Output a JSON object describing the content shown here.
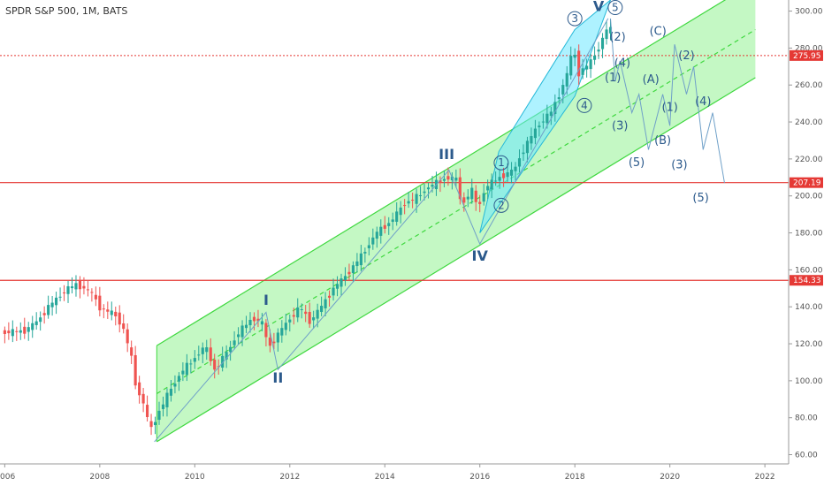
{
  "header": {
    "title": "SPDR S&P 500, 1M, BATS"
  },
  "chart_data": {
    "type": "candlestick",
    "title": "SPDR S&P 500, 1M, BATS",
    "x_ticks": [
      "006",
      "2008",
      "2010",
      "2012",
      "2014",
      "2016",
      "2018",
      "2020",
      "2022"
    ],
    "y_ticks": [
      60,
      80,
      100,
      120,
      140,
      160,
      180,
      200,
      220,
      240,
      260,
      280,
      300
    ],
    "xlim": [
      2005.9,
      2022.5
    ],
    "ylim": [
      55,
      306
    ],
    "horizontal_levels": [
      {
        "value": 275.95,
        "label": "275.95",
        "style": "dotted"
      },
      {
        "value": 207.19,
        "label": "207.19",
        "style": "solid"
      },
      {
        "value": 154.33,
        "label": "154.33",
        "style": "solid"
      }
    ],
    "price_path": [
      [
        2006.0,
        126
      ],
      [
        2006.5,
        127
      ],
      [
        2006.8,
        133
      ],
      [
        2007.0,
        140
      ],
      [
        2007.4,
        150
      ],
      [
        2007.6,
        152
      ],
      [
        2007.9,
        148
      ],
      [
        2008.1,
        139
      ],
      [
        2008.4,
        136
      ],
      [
        2008.6,
        127
      ],
      [
        2008.75,
        112
      ],
      [
        2008.85,
        96
      ],
      [
        2009.0,
        88
      ],
      [
        2009.15,
        73
      ],
      [
        2009.3,
        82
      ],
      [
        2009.5,
        92
      ],
      [
        2009.8,
        105
      ],
      [
        2010.0,
        110
      ],
      [
        2010.3,
        119
      ],
      [
        2010.5,
        106
      ],
      [
        2010.8,
        117
      ],
      [
        2011.0,
        126
      ],
      [
        2011.3,
        134
      ],
      [
        2011.5,
        131
      ],
      [
        2011.65,
        118
      ],
      [
        2011.8,
        124
      ],
      [
        2012.0,
        131
      ],
      [
        2012.3,
        140
      ],
      [
        2012.5,
        132
      ],
      [
        2012.8,
        142
      ],
      [
        2013.0,
        150
      ],
      [
        2013.3,
        158
      ],
      [
        2013.6,
        168
      ],
      [
        2013.9,
        180
      ],
      [
        2014.2,
        186
      ],
      [
        2014.5,
        196
      ],
      [
        2014.8,
        200
      ],
      [
        2015.0,
        205
      ],
      [
        2015.4,
        210
      ],
      [
        2015.6,
        209
      ],
      [
        2015.7,
        194
      ],
      [
        2015.9,
        204
      ],
      [
        2016.05,
        193
      ],
      [
        2016.2,
        205
      ],
      [
        2016.5,
        210
      ],
      [
        2016.8,
        214
      ],
      [
        2017.0,
        225
      ],
      [
        2017.3,
        238
      ],
      [
        2017.6,
        246
      ],
      [
        2017.9,
        264
      ],
      [
        2018.05,
        281
      ],
      [
        2018.15,
        266
      ],
      [
        2018.4,
        272
      ],
      [
        2018.6,
        281
      ],
      [
        2018.75,
        290
      ]
    ],
    "channels": [
      {
        "name": "green",
        "from_x": 2009.2,
        "to_x": 2021.8,
        "lower": [
          [
            2009.2,
            67
          ],
          [
            2021.8,
            264
          ]
        ],
        "upper": [
          [
            2009.2,
            119
          ],
          [
            2021.8,
            316
          ]
        ],
        "mid": [
          [
            2009.2,
            93
          ],
          [
            2021.8,
            290
          ]
        ]
      },
      {
        "name": "cyan",
        "polygon": [
          [
            2016.0,
            180
          ],
          [
            2018.0,
            254
          ],
          [
            2018.75,
            306
          ],
          [
            2018.0,
            290
          ],
          [
            2016.4,
            224
          ]
        ]
      }
    ],
    "wave_lines": [
      {
        "name": "primary",
        "points": [
          [
            2009.15,
            67
          ],
          [
            2011.5,
            137
          ],
          [
            2011.75,
            106
          ],
          [
            2015.35,
            214
          ],
          [
            2016.0,
            174
          ],
          [
            2018.7,
            296
          ]
        ]
      },
      {
        "name": "projection-1",
        "points": [
          [
            2018.75,
            296
          ],
          [
            2018.85,
            262
          ],
          [
            2018.95,
            273
          ],
          [
            2019.2,
            245
          ],
          [
            2019.35,
            255
          ],
          [
            2019.55,
            225
          ]
        ]
      },
      {
        "name": "projection-2",
        "points": [
          [
            2019.55,
            225
          ],
          [
            2019.85,
            255
          ],
          [
            2020.0,
            238
          ],
          [
            2020.1,
            282
          ],
          [
            2020.35,
            255
          ],
          [
            2020.5,
            270
          ],
          [
            2020.7,
            225
          ],
          [
            2020.9,
            245
          ],
          [
            2021.15,
            207
          ]
        ]
      }
    ],
    "wave_labels": [
      {
        "text": "I",
        "x": 2011.5,
        "y": 141,
        "cls": "wave-roman"
      },
      {
        "text": "II",
        "x": 2011.75,
        "y": 99,
        "cls": "wave-roman"
      },
      {
        "text": "III",
        "x": 2015.3,
        "y": 220,
        "cls": "wave-roman"
      },
      {
        "text": "IV",
        "x": 2016.0,
        "y": 165,
        "cls": "wave-roman"
      },
      {
        "text": "V",
        "x": 2018.5,
        "y": 300,
        "cls": "wave-roman"
      },
      {
        "text": "1",
        "x": 2016.45,
        "y": 216,
        "cls": "wave-circ",
        "circled": true
      },
      {
        "text": "2",
        "x": 2016.45,
        "y": 193,
        "cls": "wave-circ",
        "circled": true
      },
      {
        "text": "3",
        "x": 2018.0,
        "y": 294,
        "cls": "wave-circ",
        "circled": true
      },
      {
        "text": "4",
        "x": 2018.2,
        "y": 247,
        "cls": "wave-circ",
        "circled": true
      },
      {
        "text": "5",
        "x": 2018.85,
        "y": 300,
        "cls": "wave-circ",
        "circled": true
      },
      {
        "text": "(2)",
        "x": 2018.9,
        "y": 284,
        "cls": "wave-minor"
      },
      {
        "text": "(4)",
        "x": 2019.0,
        "y": 270,
        "cls": "wave-minor"
      },
      {
        "text": "(1)",
        "x": 2018.8,
        "y": 262,
        "cls": "wave-minor"
      },
      {
        "text": "(3)",
        "x": 2018.95,
        "y": 236,
        "cls": "wave-minor"
      },
      {
        "text": "(5)",
        "x": 2019.3,
        "y": 216,
        "cls": "wave-minor"
      },
      {
        "text": "(A)",
        "x": 2019.6,
        "y": 261,
        "cls": "wave-minor"
      },
      {
        "text": "(B)",
        "x": 2019.85,
        "y": 228,
        "cls": "wave-minor"
      },
      {
        "text": "(C)",
        "x": 2019.75,
        "y": 287,
        "cls": "wave-minor"
      },
      {
        "text": "(2)",
        "x": 2020.35,
        "y": 274,
        "cls": "wave-minor"
      },
      {
        "text": "(1)",
        "x": 2020.0,
        "y": 246,
        "cls": "wave-minor"
      },
      {
        "text": "(4)",
        "x": 2020.7,
        "y": 249,
        "cls": "wave-minor"
      },
      {
        "text": "(3)",
        "x": 2020.2,
        "y": 215,
        "cls": "wave-minor"
      },
      {
        "text": "(5)",
        "x": 2020.65,
        "y": 197,
        "cls": "wave-minor"
      }
    ],
    "colors": {
      "up": "#26a69a",
      "down": "#ef5350",
      "green_fill": "#7cf07c",
      "green_line": "#3fd83f",
      "cyan_fill": "#6be8ff",
      "cyan_line": "#25b8d8",
      "wave_line": "#6fa0c8",
      "level_line": "#e53935"
    }
  }
}
